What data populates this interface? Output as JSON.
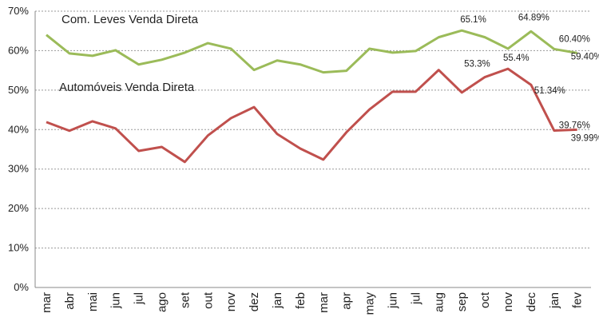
{
  "chart_data": {
    "type": "line",
    "categories": [
      "mar",
      "abr",
      "mai",
      "jun",
      "jul",
      "ago",
      "set",
      "out",
      "nov",
      "dez",
      "jan",
      "feb",
      "mar",
      "apr",
      "may",
      "jun",
      "jul",
      "aug",
      "sep",
      "oct",
      "nov",
      "dec",
      "jan",
      "fev"
    ],
    "ylim": [
      0,
      70
    ],
    "yticks": [
      "0%",
      "10%",
      "20%",
      "30%",
      "40%",
      "50%",
      "60%",
      "70%"
    ],
    "grid": true,
    "series": [
      {
        "name": "Com. Leves Venda Direta",
        "color": "#9bbb59",
        "values": [
          64.0,
          59.3,
          58.7,
          60.1,
          56.5,
          57.7,
          59.5,
          61.9,
          60.5,
          55.1,
          57.5,
          56.5,
          54.5,
          54.9,
          60.5,
          59.5,
          59.9,
          63.4,
          65.1,
          63.4,
          60.5,
          64.89,
          60.4,
          59.4
        ],
        "data_labels": [
          {
            "index": 18,
            "text": "65.1%"
          },
          {
            "index": 21,
            "text": "64.89%"
          },
          {
            "index": 22,
            "text": "60.40%"
          },
          {
            "index": 23,
            "text": "59.40%"
          }
        ]
      },
      {
        "name": "Automóveis Venda Direta",
        "color": "#c0504d",
        "values": [
          41.9,
          39.7,
          42.1,
          40.3,
          34.6,
          35.6,
          31.8,
          38.5,
          42.9,
          45.7,
          38.9,
          35.2,
          32.4,
          39.3,
          45.1,
          49.6,
          49.6,
          55.1,
          49.4,
          53.3,
          55.4,
          51.34,
          39.76,
          39.99
        ],
        "data_labels": [
          {
            "index": 19,
            "text": "53.3%"
          },
          {
            "index": 20,
            "text": "55.4%"
          },
          {
            "index": 21,
            "text": "51.34%"
          },
          {
            "index": 22,
            "text": "39.76%"
          },
          {
            "index": 23,
            "text": "39.99%"
          }
        ]
      }
    ]
  }
}
